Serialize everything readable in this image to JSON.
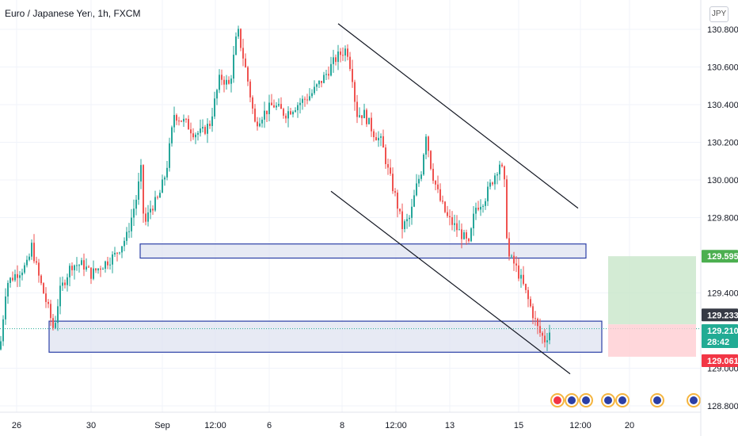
{
  "header": {
    "title": "Euro / Japanese Yen, 1h, FXCM"
  },
  "price_scale": {
    "currency_button": "JPY"
  },
  "colors": {
    "up": "#26a69a",
    "down": "#ef5350",
    "zone_fill": "#dfe3f0",
    "zone_stroke": "#2b3fa6",
    "channel": "#131722",
    "target": "#c8e6c9",
    "stop": "#ffcdd2",
    "tag_green": "#4caf50",
    "tag_red": "#f23645",
    "tag_teal": "#22ab94",
    "tag_gray": "#363a45"
  },
  "chart_data": {
    "type": "candlestick",
    "title": "Euro / Japanese Yen, 1h, FXCM",
    "y_ticks": [
      "130.800",
      "130.600",
      "130.400",
      "130.200",
      "130.000",
      "129.800",
      "129.400",
      "129.000",
      "128.800"
    ],
    "x_ticks": [
      "26",
      "30",
      "Sep",
      "12:00",
      "6",
      "8",
      "12:00",
      "13",
      "15",
      "12:00",
      "20"
    ],
    "ylim": [
      128.78,
      130.88
    ],
    "price_labels": {
      "target": "129.595",
      "entry": "129.233",
      "current": "129.210",
      "countdown": "28:42",
      "stop": "129.061"
    },
    "path_keypoints": [
      [
        0,
        129.1
      ],
      [
        8,
        129.45
      ],
      [
        20,
        129.5
      ],
      [
        35,
        129.55
      ],
      [
        40,
        129.65
      ],
      [
        48,
        129.5
      ],
      [
        55,
        129.4
      ],
      [
        62,
        129.3
      ],
      [
        68,
        129.2
      ],
      [
        75,
        129.4
      ],
      [
        90,
        129.55
      ],
      [
        105,
        129.55
      ],
      [
        115,
        129.5
      ],
      [
        130,
        129.55
      ],
      [
        145,
        129.6
      ],
      [
        160,
        129.7
      ],
      [
        172,
        129.9
      ],
      [
        178,
        130.05
      ],
      [
        182,
        129.75
      ],
      [
        190,
        129.85
      ],
      [
        200,
        129.9
      ],
      [
        210,
        130.05
      ],
      [
        220,
        130.35
      ],
      [
        235,
        130.3
      ],
      [
        245,
        130.25
      ],
      [
        255,
        130.25
      ],
      [
        265,
        130.3
      ],
      [
        278,
        130.55
      ],
      [
        290,
        130.5
      ],
      [
        300,
        130.8
      ],
      [
        312,
        130.55
      ],
      [
        322,
        130.3
      ],
      [
        332,
        130.35
      ],
      [
        345,
        130.4
      ],
      [
        360,
        130.35
      ],
      [
        375,
        130.4
      ],
      [
        392,
        130.45
      ],
      [
        410,
        130.55
      ],
      [
        425,
        130.65
      ],
      [
        438,
        130.7
      ],
      [
        445,
        130.55
      ],
      [
        450,
        130.35
      ],
      [
        460,
        130.35
      ],
      [
        472,
        130.25
      ],
      [
        482,
        130.2
      ],
      [
        490,
        130.05
      ],
      [
        500,
        129.9
      ],
      [
        508,
        129.75
      ],
      [
        518,
        129.8
      ],
      [
        525,
        129.95
      ],
      [
        532,
        130.05
      ],
      [
        538,
        130.25
      ],
      [
        545,
        130.05
      ],
      [
        555,
        129.9
      ],
      [
        565,
        129.8
      ],
      [
        575,
        129.75
      ],
      [
        585,
        129.7
      ],
      [
        592,
        129.65
      ],
      [
        600,
        129.85
      ],
      [
        612,
        129.9
      ],
      [
        622,
        130.0
      ],
      [
        632,
        130.1
      ],
      [
        638,
        129.95
      ],
      [
        641,
        129.6
      ],
      [
        650,
        129.55
      ],
      [
        660,
        129.45
      ],
      [
        672,
        129.3
      ],
      [
        680,
        129.2
      ],
      [
        688,
        129.15
      ],
      [
        696,
        129.21
      ]
    ],
    "zones": [
      {
        "name": "upper-support",
        "x0": 177,
        "x1": 740,
        "y_top": 129.66,
        "y_bottom": 129.585
      },
      {
        "name": "lower-support",
        "x0": 62,
        "x1": 760,
        "y_top": 129.25,
        "y_bottom": 129.085
      }
    ],
    "channel_lines": [
      {
        "x0": 427,
        "y0": 130.83,
        "x1": 730,
        "y1": 129.85
      },
      {
        "x0": 418,
        "y0": 129.94,
        "x1": 720,
        "y1": 128.97
      }
    ],
    "position": {
      "x0": 768,
      "x1": 879,
      "target": 129.595,
      "entry": 129.233,
      "stop": 129.061
    },
    "events": [
      {
        "color": "#f23645"
      },
      {
        "color": "#2b3fa6"
      },
      {
        "color": "#2b3fa6"
      },
      {
        "color": "#2b3fa6"
      },
      {
        "color": "#2b3fa6"
      },
      {
        "color": "#2b3fa6"
      },
      {
        "color": "#2b3fa6"
      }
    ]
  }
}
